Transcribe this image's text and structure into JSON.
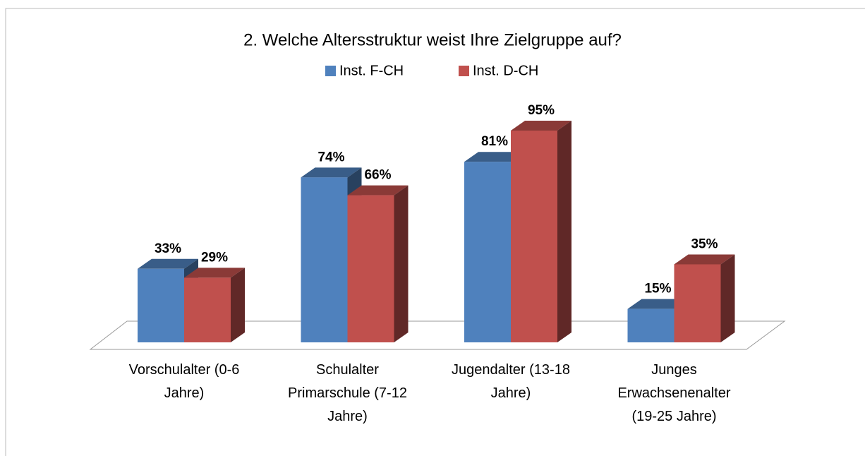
{
  "chart_data": {
    "type": "bar3d",
    "title": "2. Welche Altersstruktur weist Ihre Zielgruppe auf?",
    "categories": [
      "Vorschulalter (0-6 Jahre)",
      "Schulalter Primarschule (7-12 Jahre)",
      "Jugendalter (13-18 Jahre)",
      "Junges Erwachsenenalter (19-25 Jahre)"
    ],
    "series": [
      {
        "name": "Inst. F-CH",
        "color": "#4f81bd",
        "values": [
          33,
          74,
          81,
          15
        ],
        "value_labels": [
          "33%",
          "74%",
          "81%",
          "15%"
        ]
      },
      {
        "name": "Inst. D-CH",
        "color": "#c0504d",
        "values": [
          29,
          66,
          95,
          35
        ],
        "value_labels": [
          "29%",
          "66%",
          "95%",
          "35%"
        ]
      }
    ],
    "legend": "top"
  }
}
